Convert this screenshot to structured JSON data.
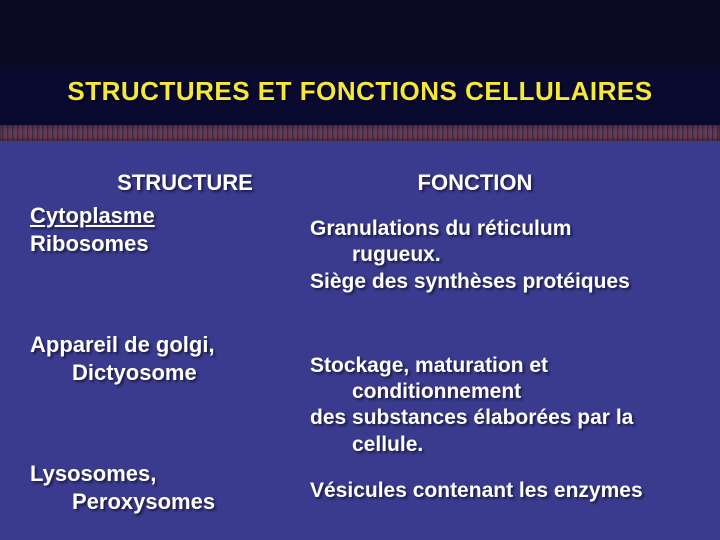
{
  "colors": {
    "background_top": "#0a0a25",
    "background_main": "#3a3a8e",
    "title_color": "#f5e83a",
    "text_color": "#ffffff",
    "divider_color": "#6b3a5a"
  },
  "typography": {
    "title_fontsize": 26,
    "heading_fontsize": 22,
    "body_fontsize": 22,
    "font_weight": "bold",
    "font_family": "Arial"
  },
  "title": "STRUCTURES ET FONCTIONS CELLULAIRES",
  "columns": {
    "left_heading": "STRUCTURE",
    "right_heading": "FONCTION"
  },
  "rows": [
    {
      "structure_line1": "Cytoplasme",
      "structure_line2": "Ribosomes",
      "function_line1": "Granulations du réticulum",
      "function_line2": "rugueux.",
      "function_line3": "Siège des synthèses protéiques"
    },
    {
      "structure_line1": "Appareil de golgi,",
      "structure_line2": "Dictyosome",
      "function_line1": "Stockage, maturation et",
      "function_line2": "conditionnement",
      "function_line3": "des substances élaborées  par la",
      "function_line4": "cellule."
    },
    {
      "structure_line1": "Lysosomes,",
      "structure_line2": "Peroxysomes",
      "function_line1": "Vésicules contenant les enzymes"
    }
  ]
}
